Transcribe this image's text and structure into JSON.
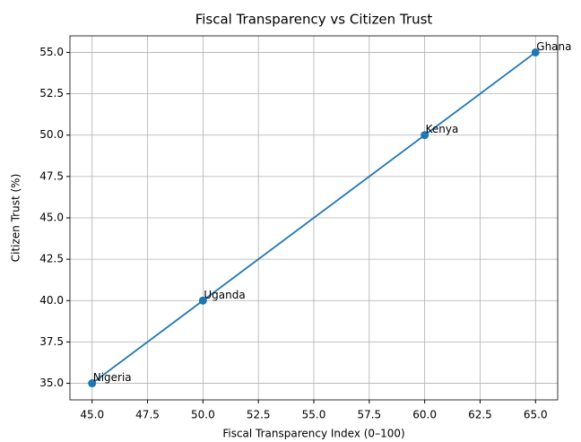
{
  "chart_data": {
    "type": "line",
    "title": "Fiscal Transparency vs Citizen Trust",
    "xlabel": "Fiscal Transparency Index (0–100)",
    "ylabel": "Citizen Trust (%)",
    "x": [
      60,
      65,
      45,
      50
    ],
    "values": [
      50,
      55,
      35,
      40
    ],
    "point_labels": [
      "Kenya",
      "Ghana",
      "Nigeria",
      "Uganda"
    ],
    "color": "#1f77b4",
    "xlim": [
      44,
      66
    ],
    "xticks": [
      {
        "value": 45,
        "label": "45.0"
      },
      {
        "value": 47.5,
        "label": "47.5"
      },
      {
        "value": 50,
        "label": "50.0"
      },
      {
        "value": 52.5,
        "label": "52.5"
      },
      {
        "value": 55,
        "label": "55.0"
      },
      {
        "value": 57.5,
        "label": "57.5"
      },
      {
        "value": 60,
        "label": "60.0"
      },
      {
        "value": 62.5,
        "label": "62.5"
      },
      {
        "value": 65,
        "label": "65.0"
      }
    ],
    "ylim": [
      34,
      56
    ],
    "yticks": [
      {
        "value": 35,
        "label": "35.0"
      },
      {
        "value": 37.5,
        "label": "37.5"
      },
      {
        "value": 40,
        "label": "40.0"
      },
      {
        "value": 42.5,
        "label": "42.5"
      },
      {
        "value": 45,
        "label": "45.0"
      },
      {
        "value": 47.5,
        "label": "47.5"
      },
      {
        "value": 50,
        "label": "50.0"
      },
      {
        "value": 52.5,
        "label": "52.5"
      },
      {
        "value": 55,
        "label": "55.0"
      }
    ],
    "grid": true
  }
}
